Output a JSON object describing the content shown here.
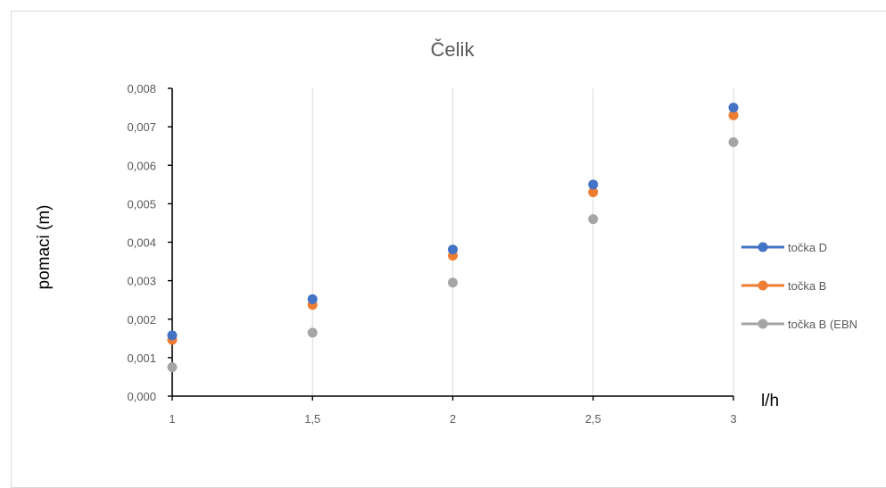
{
  "chart_data": {
    "type": "scatter",
    "title": "Čelik",
    "xlabel": "l/h",
    "ylabel": "pomaci (m)",
    "x": [
      1,
      1.5,
      2,
      2.5,
      3
    ],
    "x_tick_labels": [
      "1",
      "1,5",
      "2",
      "2,5",
      "3"
    ],
    "xlim": [
      1,
      3
    ],
    "ylim": [
      0,
      0.008
    ],
    "y_tick_labels": [
      "0,000",
      "0,001",
      "0,002",
      "0,003",
      "0,004",
      "0,005",
      "0,006",
      "0,007",
      "0,008"
    ],
    "grid": "vertical",
    "legend_position": "right",
    "series": [
      {
        "name": "točka D",
        "color": "#4472C4",
        "values": [
          0.00158,
          0.00252,
          0.00381,
          0.0055,
          0.0075
        ]
      },
      {
        "name": "točka B",
        "color": "#ED7D31",
        "values": [
          0.00146,
          0.00237,
          0.00365,
          0.0053,
          0.0073
        ]
      },
      {
        "name": "točka B (EBN",
        "color": "#A5A5A5",
        "values": [
          0.00075,
          0.00165,
          0.00295,
          0.0046,
          0.0066
        ]
      }
    ]
  }
}
